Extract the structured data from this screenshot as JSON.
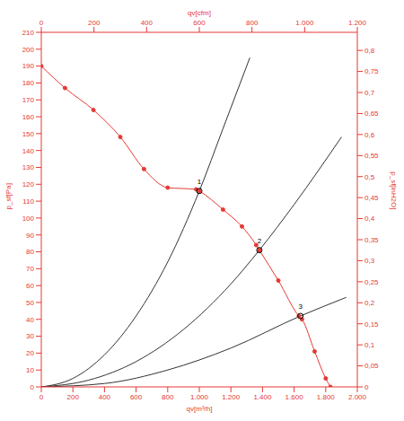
{
  "chart_data": {
    "type": "line",
    "x_label": "qv[m³/h]",
    "x2_label": "qv[cfm]",
    "y_label": "p_sf[Pa]",
    "y2_label": "p_sf[inH2O]",
    "xlim": [
      0,
      2000
    ],
    "xticks": [
      0,
      200,
      400,
      600,
      800,
      {
        "value": 1000,
        "label": "1.000"
      },
      {
        "value": 1200,
        "label": "1.200"
      },
      {
        "value": 1400,
        "label": "1.400"
      },
      {
        "value": 1600,
        "label": "1.600"
      },
      {
        "value": 1800,
        "label": "1.800"
      },
      {
        "value": 2000,
        "label": "2.000"
      }
    ],
    "x2lim": [
      0,
      1200
    ],
    "x2ticks": [
      0,
      200,
      400,
      600,
      800,
      {
        "value": 1000,
        "label": "1.000"
      },
      {
        "value": 1200,
        "label": "1.200"
      }
    ],
    "ylim": [
      0,
      210
    ],
    "yticks": [
      0,
      10,
      20,
      30,
      40,
      50,
      60,
      70,
      80,
      90,
      100,
      110,
      120,
      130,
      140,
      150,
      160,
      170,
      180,
      190,
      200,
      210
    ],
    "y2lim": [
      0,
      0.843
    ],
    "y2ticks": [
      0,
      {
        "value": 0.05,
        "label": "0,05"
      },
      {
        "value": 0.1,
        "label": "0,1"
      },
      {
        "value": 0.15,
        "label": "0,15"
      },
      {
        "value": 0.2,
        "label": "0,2"
      },
      {
        "value": 0.25,
        "label": "0,25"
      },
      {
        "value": 0.3,
        "label": "0,3"
      },
      {
        "value": 0.35,
        "label": "0,35"
      },
      {
        "value": 0.4,
        "label": "0,4"
      },
      {
        "value": 0.45,
        "label": "0,45"
      },
      {
        "value": 0.5,
        "label": "0,5"
      },
      {
        "value": 0.55,
        "label": "0,55"
      },
      {
        "value": 0.6,
        "label": "0,6"
      },
      {
        "value": 0.65,
        "label": "0,65"
      },
      {
        "value": 0.7,
        "label": "0,7"
      },
      {
        "value": 0.75,
        "label": "0,75"
      },
      {
        "value": 0.8,
        "label": "0,8"
      }
    ],
    "grid": false,
    "series": [
      {
        "color": "#e53935",
        "marker": "circle",
        "x": [
          0,
          150,
          330,
          500,
          650,
          800,
          980,
          1000,
          1150,
          1270,
          1360,
          1380,
          1500,
          1630,
          1650,
          1730,
          1800,
          1830
        ],
        "values": [
          190,
          177,
          164,
          148,
          129,
          118,
          117,
          116,
          105,
          95,
          84,
          81,
          63,
          42,
          40,
          21,
          5,
          0
        ]
      },
      {
        "color": "#333333",
        "marker": "none",
        "x": [
          0,
          200,
          400,
          600,
          800,
          1000,
          1150,
          1320
        ],
        "values": [
          0,
          5,
          19,
          42,
          74,
          116,
          153,
          195
        ]
      },
      {
        "color": "#333333",
        "marker": "none",
        "x": [
          0,
          300,
          600,
          900,
          1200,
          1380,
          1600,
          1900
        ],
        "values": [
          0,
          4,
          15,
          34,
          61,
          81,
          108,
          148
        ]
      },
      {
        "color": "#333333",
        "marker": "none",
        "x": [
          0,
          400,
          800,
          1200,
          1640,
          1930
        ],
        "values": [
          0,
          2,
          10,
          23,
          42,
          53
        ]
      }
    ],
    "annotations": [
      {
        "x": 1000,
        "y": 116,
        "text": "1"
      },
      {
        "x": 1380,
        "y": 81,
        "text": "2"
      },
      {
        "x": 1640,
        "y": 42,
        "text": "3"
      }
    ]
  }
}
